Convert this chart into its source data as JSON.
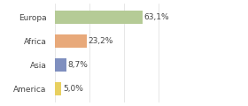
{
  "categories": [
    "Europa",
    "Africa",
    "Asia",
    "America"
  ],
  "values": [
    63.1,
    23.2,
    8.7,
    5.0
  ],
  "labels": [
    "63,1%",
    "23,2%",
    "8,7%",
    "5,0%"
  ],
  "bar_colors": [
    "#b5cb96",
    "#e8a97a",
    "#7f8fbf",
    "#e8d060"
  ],
  "background_color": "#ffffff",
  "xlim": [
    0,
    100
  ],
  "grid_color": "#dddddd",
  "text_color": "#444444",
  "label_fontsize": 6.5,
  "ytick_fontsize": 6.5,
  "bar_height": 0.55
}
